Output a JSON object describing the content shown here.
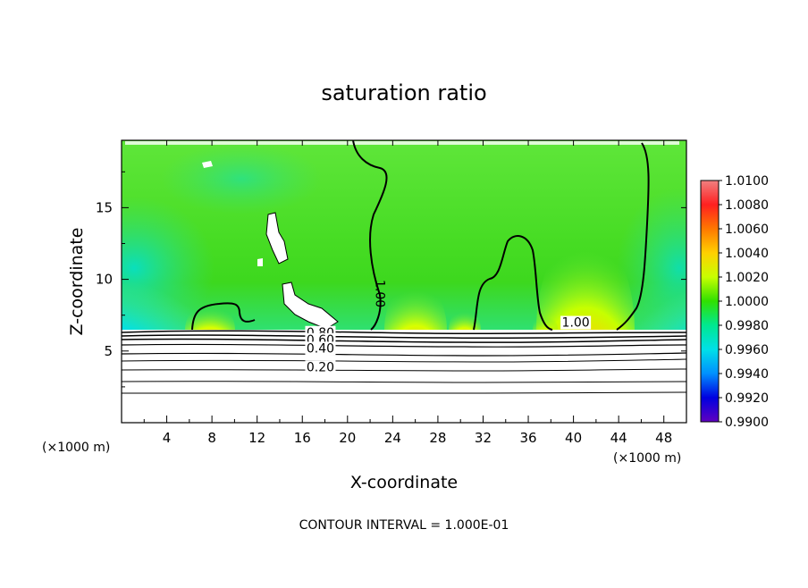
{
  "chart_data": {
    "type": "heatmap",
    "title": "saturation ratio",
    "xlabel": "X-coordinate",
    "ylabel": "Z-coordinate",
    "x_unit": "(×1000 m)",
    "x_unit_left": "(×1000 m)",
    "xlim": [
      0,
      50
    ],
    "ylim": [
      0,
      19.7
    ],
    "xticks": [
      4,
      8,
      12,
      16,
      20,
      24,
      28,
      32,
      36,
      40,
      44,
      48
    ],
    "xtick_labels": [
      "4",
      "8",
      "12",
      "16",
      "20",
      "24",
      "28",
      "32",
      "36",
      "40",
      "44",
      "48"
    ],
    "yticks": [
      5,
      10,
      15
    ],
    "ytick_labels": [
      "5",
      "10",
      "15"
    ],
    "colorbar": {
      "min": 0.99,
      "max": 1.01,
      "labels": [
        "1.0100",
        "1.0080",
        "1.0060",
        "1.0040",
        "1.0020",
        "1.0000",
        "0.9980",
        "0.9960",
        "0.9940",
        "0.9920",
        "0.9900"
      ],
      "colors": [
        "#f08080",
        "#ff2020",
        "#ff7800",
        "#ffd000",
        "#c8ff00",
        "#30e000",
        "#00e890",
        "#00e0e8",
        "#0090ff",
        "#0000e0",
        "#6000c0"
      ]
    },
    "contour_labels": [
      {
        "text": "1.00",
        "x": 22.5,
        "z": 9.0
      },
      {
        "text": "1.00",
        "x": 40.2,
        "z": 6.7
      },
      {
        "text": "0.80",
        "x": 17.6,
        "z": 6.0
      },
      {
        "text": "0.60",
        "x": 17.6,
        "z": 5.5
      },
      {
        "text": "0.40",
        "x": 17.6,
        "z": 4.9
      },
      {
        "text": "0.20",
        "x": 17.6,
        "z": 3.6
      }
    ],
    "footer": "CONTOUR INTERVAL = 1.000E-01"
  }
}
